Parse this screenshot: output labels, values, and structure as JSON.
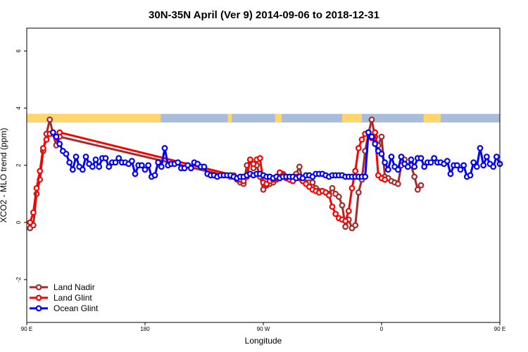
{
  "chart_data": {
    "type": "line",
    "title": "30N-35N April (Ver 9)   2014-09-06 to 2018-12-31",
    "xlabel": "Longitude",
    "ylabel": "XCO2 - MLO trend (ppm)",
    "xlim": [
      -90,
      270
    ],
    "ylim": [
      -3.5,
      6.8
    ],
    "x_ticks": [
      -90,
      0,
      90,
      180,
      270
    ],
    "x_tick_labels": [
      "90 E",
      "180",
      "90 W",
      "0",
      "90 E"
    ],
    "y_ticks": [
      -2,
      0,
      2,
      4,
      6
    ],
    "y_tick_labels": [
      "-2",
      "0",
      "2",
      "4",
      "6"
    ],
    "grid": false,
    "legend_position": "bottom-left",
    "band": {
      "y_range": [
        3.5,
        3.8
      ],
      "ocean_color": "#a9bcd9",
      "land_color": "#ffd66b",
      "land_segments": [
        [
          -90,
          12
        ],
        [
          63,
          66
        ],
        [
          99,
          104
        ],
        [
          150,
          165
        ],
        [
          212,
          225
        ]
      ]
    },
    "series": [
      {
        "name": "Land Nadir",
        "color": "#a52a2a",
        "x": [
          -87.5,
          -85,
          -82.5,
          -80,
          -77.5,
          -75,
          -72.5,
          -70,
          -67.5,
          -65,
          65,
          67.5,
          70,
          72.5,
          75,
          77.5,
          80,
          82.5,
          85,
          87.5,
          90,
          92.5,
          95,
          97.5,
          100,
          102.5,
          105,
          107.5,
          110,
          112.5,
          115,
          117.5,
          120,
          122.5,
          125,
          127.5,
          130,
          132.5,
          135,
          137.5,
          140,
          142.5,
          145,
          147.5,
          150,
          152.5,
          155,
          157.5,
          160,
          162.5,
          165,
          167.5,
          170,
          172.5,
          175,
          177.5,
          180,
          182.5,
          185,
          187.5,
          190,
          192.5,
          195,
          197.5,
          200,
          202.5,
          205,
          207.5,
          210
        ],
        "y": [
          -0.2,
          -0.1,
          1.0,
          1.5,
          2.5,
          3.1,
          3.6,
          3.1,
          2.7,
          3.0,
          1.6,
          1.6,
          1.5,
          1.4,
          1.35,
          2.0,
          2.2,
          1.9,
          2.0,
          1.6,
          1.15,
          1.3,
          1.35,
          1.4,
          1.5,
          1.55,
          1.7,
          1.6,
          1.55,
          1.45,
          1.7,
          1.95,
          1.45,
          1.4,
          1.4,
          1.4,
          1.2,
          1.1,
          1.1,
          1.05,
          1.0,
          1.2,
          1.0,
          0.9,
          0.6,
          -0.15,
          0.1,
          -0.2,
          -0.1,
          1.05,
          1.5,
          2.5,
          3.1,
          3.6,
          3.0,
          2.7,
          3.0,
          1.6,
          1.55,
          1.45,
          1.4,
          1.35,
          2.0,
          2.2,
          1.95,
          2.0,
          1.6,
          1.15,
          1.3
        ]
      },
      {
        "name": "Land Glint",
        "color": "#ff0000",
        "x": [
          -87.5,
          -85,
          -82.5,
          -80,
          -77.5,
          -75,
          -72.5,
          -70,
          -67.5,
          -65,
          67.5,
          70,
          72.5,
          75,
          77.5,
          80,
          82.5,
          85,
          87.5,
          90,
          92.5,
          95,
          97.5,
          100,
          102.5,
          105,
          107.5,
          110,
          112.5,
          115,
          117.5,
          120,
          122.5,
          125,
          127.5,
          130,
          132.5,
          135,
          137.5,
          140,
          142.5,
          145,
          147.5,
          150,
          152.5,
          155,
          157.5,
          160,
          162.5,
          165,
          167.5,
          170,
          172.5,
          175,
          177.5,
          180,
          182.5
        ],
        "y": [
          0.0,
          0.35,
          1.2,
          1.8,
          2.6,
          2.9,
          3.1,
          3.15,
          2.95,
          3.15,
          1.65,
          1.55,
          1.5,
          1.45,
          1.6,
          2.2,
          2.05,
          2.2,
          2.25,
          1.4,
          1.35,
          1.45,
          1.5,
          1.55,
          1.75,
          1.65,
          1.55,
          1.5,
          1.45,
          1.6,
          1.55,
          1.45,
          1.35,
          1.25,
          1.15,
          1.1,
          1.05,
          1.1,
          1.05,
          0.95,
          0.55,
          0.3,
          0.15,
          0.1,
          0.05,
          0.4,
          1.2,
          1.8,
          2.6,
          2.9,
          3.1,
          3.15,
          2.95,
          3.15,
          1.65,
          1.55,
          1.5
        ]
      },
      {
        "name": "Ocean Glint",
        "color": "#0000ff",
        "x": [
          -70,
          -67.5,
          -65,
          -62.5,
          -60,
          -57.5,
          -55,
          -52.5,
          -50,
          -47.5,
          -45,
          -42.5,
          -40,
          -37.5,
          -35,
          -32.5,
          -30,
          -27.5,
          -25,
          -22.5,
          -20,
          -17.5,
          -15,
          -12.5,
          -10,
          -7.5,
          -5,
          -2.5,
          0,
          2.5,
          5,
          7.5,
          10,
          12.5,
          15,
          17.5,
          20,
          22.5,
          25,
          27.5,
          30,
          32.5,
          35,
          37.5,
          40,
          42.5,
          45,
          47.5,
          50,
          52.5,
          55,
          57.5,
          60,
          62.5,
          65,
          67.5,
          70,
          72.5,
          75,
          77.5,
          80,
          82.5,
          85,
          87.5,
          90,
          92.5,
          95,
          97.5,
          100,
          102.5,
          105,
          107.5,
          110,
          112.5,
          115,
          117.5,
          120,
          122.5,
          125,
          127.5,
          130,
          132.5,
          135,
          137.5,
          140,
          142.5,
          145,
          147.5,
          150,
          152.5,
          155,
          157.5,
          160,
          162.5,
          165,
          167.5,
          170,
          172.5,
          175,
          177.5,
          180,
          182.5,
          185,
          187.5,
          190,
          192.5,
          195,
          197.5,
          200,
          202.5,
          205,
          207.5,
          210,
          212.5,
          215,
          217.5,
          220,
          222.5,
          225,
          227.5,
          230,
          232.5,
          235,
          237.5,
          240,
          242.5,
          245,
          247.5,
          250,
          252.5,
          255,
          257.5,
          260,
          262.5,
          265,
          267.5,
          270
        ],
        "y": [
          3.15,
          3.0,
          2.75,
          2.5,
          2.4,
          2.1,
          1.85,
          2.3,
          1.95,
          1.85,
          2.3,
          2.05,
          1.95,
          2.2,
          1.95,
          2.25,
          2.25,
          1.95,
          2.1,
          2.1,
          2.25,
          2.1,
          2.1,
          2.05,
          2.15,
          1.7,
          2.0,
          2.0,
          1.85,
          2.0,
          1.6,
          1.65,
          2.1,
          1.95,
          2.6,
          2.0,
          2.05,
          2.05,
          2.1,
          1.9,
          1.9,
          2.0,
          1.9,
          2.1,
          2.05,
          1.95,
          1.95,
          1.7,
          1.65,
          1.65,
          1.6,
          1.65,
          1.65,
          1.65,
          1.65,
          1.6,
          1.55,
          1.6,
          1.6,
          1.65,
          1.7,
          1.65,
          1.7,
          1.7,
          1.65,
          1.6,
          1.6,
          1.55,
          1.6,
          1.55,
          1.6,
          1.6,
          1.6,
          1.6,
          1.55,
          1.6,
          1.55,
          1.65,
          1.65,
          1.6,
          1.7,
          1.7,
          1.7,
          1.65,
          1.6,
          1.65,
          1.65,
          1.65,
          1.65,
          1.6,
          1.6,
          1.6,
          1.6,
          1.6,
          1.6,
          1.6,
          3.15,
          3.0,
          2.75,
          2.5,
          2.4,
          2.1,
          1.85,
          2.3,
          1.95,
          1.85,
          2.3,
          2.05,
          1.95,
          2.2,
          1.95,
          2.25,
          2.25,
          1.95,
          2.1,
          2.1,
          2.25,
          2.1,
          2.1,
          2.05,
          2.15,
          1.7,
          2.0,
          2.0,
          1.85,
          2.0,
          1.6,
          1.65,
          2.1,
          1.95,
          2.6,
          2.0,
          2.3,
          2.05,
          1.95,
          2.3,
          2.05
        ]
      }
    ]
  }
}
